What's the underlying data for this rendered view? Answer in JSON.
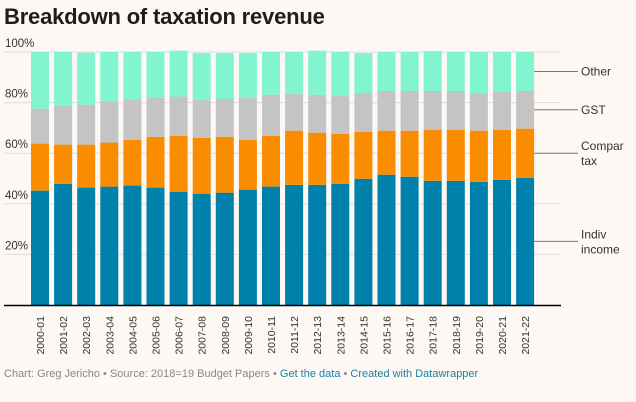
{
  "chart_data": {
    "type": "bar",
    "stacked": true,
    "title": "Breakdown of taxation revenue",
    "xlabel": "",
    "ylabel": "",
    "ylim": [
      0,
      100
    ],
    "y_ticks": [
      {
        "value": 20,
        "label": "20%"
      },
      {
        "value": 40,
        "label": "40%"
      },
      {
        "value": 60,
        "label": "60%"
      },
      {
        "value": 80,
        "label": "80%"
      },
      {
        "value": 100,
        "label": "100%"
      }
    ],
    "grid": true,
    "legend_placement": "right (direct labels)",
    "categories": [
      "2000-01",
      "2001-02",
      "2002-03",
      "2003-04",
      "2004-05",
      "2005-06",
      "2006-07",
      "2007-08",
      "2008-09",
      "2009-10",
      "2010-11",
      "2011-12",
      "2012-13",
      "2013-14",
      "2014-15",
      "2015-16",
      "2016-17",
      "2017-18",
      "2018-19",
      "2019-20",
      "2020-21",
      "2021-22"
    ],
    "series": [
      {
        "name": "Indiv income",
        "color": "#0081ab",
        "values": [
          45.2,
          47.9,
          46.4,
          46.8,
          47.2,
          46.4,
          44.8,
          44.0,
          44.4,
          45.6,
          46.8,
          47.5,
          47.5,
          47.9,
          49.9,
          51.5,
          50.7,
          49.1,
          49.1,
          48.7,
          49.5,
          50.3
        ]
      },
      {
        "name": "Compar tax",
        "color": "#fa8c00",
        "values": [
          18.6,
          15.5,
          17.0,
          17.4,
          18.1,
          20.1,
          22.1,
          22.1,
          22.1,
          19.7,
          20.1,
          21.4,
          20.6,
          19.8,
          18.6,
          17.4,
          18.2,
          20.2,
          20.2,
          20.2,
          19.8,
          19.4
        ]
      },
      {
        "name": "GST",
        "color": "#c4c4c4",
        "values": [
          13.8,
          15.4,
          15.8,
          16.2,
          15.9,
          15.5,
          15.5,
          14.9,
          14.9,
          16.6,
          16.2,
          14.6,
          15.0,
          14.9,
          15.3,
          15.7,
          15.7,
          15.3,
          15.3,
          14.9,
          14.9,
          14.9
        ]
      },
      {
        "name": "Other",
        "color": "#80f5cf",
        "values": [
          22.4,
          21.2,
          20.5,
          19.6,
          18.8,
          18.0,
          18.1,
          18.6,
          18.2,
          17.7,
          16.9,
          16.5,
          17.4,
          17.4,
          15.8,
          15.4,
          15.4,
          15.8,
          15.4,
          16.2,
          15.8,
          15.4
        ]
      }
    ],
    "legend": [
      {
        "series": "Other",
        "lines": [
          "Other"
        ]
      },
      {
        "series": "GST",
        "lines": [
          "GST"
        ]
      },
      {
        "series": "Compar tax",
        "lines": [
          "Compar",
          "tax"
        ]
      },
      {
        "series": "Indiv income",
        "lines": [
          "Indiv",
          "income"
        ]
      }
    ]
  },
  "footer": {
    "credit": "Chart: Greg Jericho",
    "separator": "•",
    "source": "Source: 2018=19 Budget Papers",
    "get_data": "Get the data",
    "created_with": "Created with Datawrapper"
  }
}
